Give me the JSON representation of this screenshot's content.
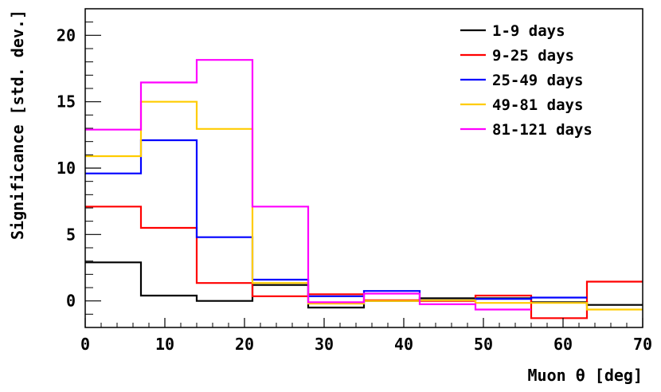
{
  "chart_data": {
    "type": "line",
    "style": "step-histogram",
    "xlabel": "Muon θ [deg]",
    "ylabel": "Significance [std. dev.]",
    "xlim": [
      0,
      70
    ],
    "ylim": [
      -2,
      22
    ],
    "xticks": [
      0,
      10,
      20,
      30,
      40,
      50,
      60,
      70
    ],
    "yticks": [
      0,
      5,
      10,
      15,
      20
    ],
    "grid": false,
    "legend_position": "top-right",
    "bin_edges": [
      0,
      7,
      14,
      21,
      28,
      35,
      42,
      49,
      56,
      63,
      70
    ],
    "series": [
      {
        "name": "1-9 days",
        "color": "#000000",
        "values": [
          2.9,
          0.4,
          0.0,
          1.2,
          -0.5,
          0.0,
          0.2,
          0.2,
          -0.1,
          -0.3
        ]
      },
      {
        "name": "9-25 days",
        "color": "#ff0000",
        "values": [
          7.1,
          5.5,
          1.35,
          0.35,
          0.5,
          0.05,
          0.0,
          0.4,
          -1.3,
          1.45
        ]
      },
      {
        "name": "25-49 days",
        "color": "#0000ff",
        "values": [
          9.6,
          12.1,
          4.8,
          1.6,
          0.35,
          0.75,
          0.05,
          0.15,
          0.25,
          null
        ]
      },
      {
        "name": "49-81 days",
        "color": "#ffcc00",
        "values": [
          10.9,
          15.0,
          12.95,
          1.35,
          -0.2,
          0.0,
          0.05,
          -0.15,
          -0.15,
          -0.65
        ]
      },
      {
        "name": "81-121 days",
        "color": "#ff00ff",
        "values": [
          12.9,
          16.45,
          18.15,
          7.1,
          -0.1,
          0.55,
          -0.25,
          -0.65,
          null,
          null
        ]
      }
    ]
  }
}
